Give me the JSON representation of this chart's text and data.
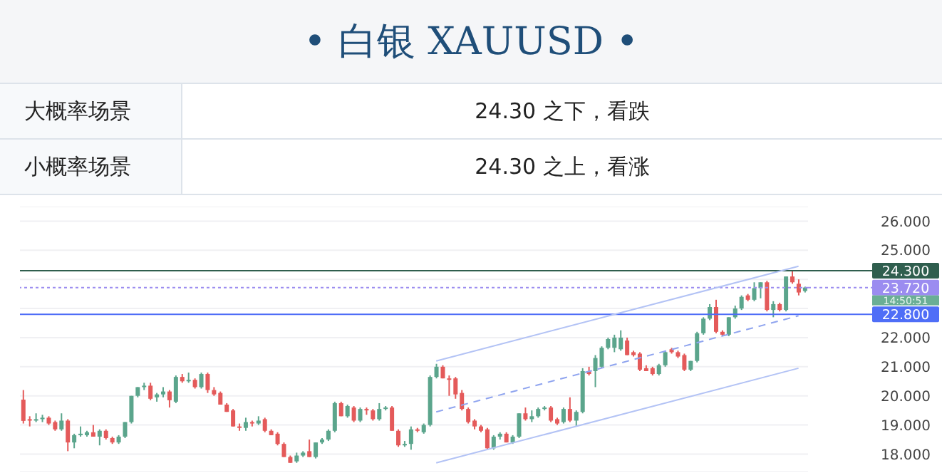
{
  "chart_data": {
    "type": "candlestick",
    "title": "• 白银 XAUUSD •",
    "annotations": [
      "大概率场景",
      "24.30 之下，看跌",
      "小概率场景",
      "24.30 之上，看涨",
      "14:50:51"
    ],
    "categories": [
      null,
      null,
      null,
      null,
      null,
      null,
      null,
      null,
      null,
      null,
      null,
      null,
      null,
      null,
      null,
      null,
      null,
      null,
      null,
      null,
      null,
      null,
      null,
      null,
      null,
      null,
      null,
      null,
      null,
      null,
      null,
      null,
      null,
      null,
      null,
      null,
      null,
      null,
      null,
      null,
      null,
      null,
      null,
      null,
      null,
      null,
      null,
      null,
      null,
      null,
      null,
      null,
      null,
      null,
      null,
      null,
      null,
      null,
      null,
      null,
      null,
      null,
      null,
      null,
      null,
      null,
      null,
      null,
      null,
      null,
      null,
      null,
      null,
      null,
      null,
      null,
      null,
      null,
      null,
      null,
      null,
      null,
      null,
      null,
      null,
      null,
      null,
      null,
      null,
      null,
      null,
      null,
      null,
      null,
      null,
      null,
      null,
      null,
      null,
      null,
      null,
      null,
      null,
      null,
      null,
      null,
      null,
      null,
      null,
      null,
      null,
      null,
      null,
      null,
      null,
      null,
      null,
      null,
      null,
      null,
      null,
      null,
      null,
      null
    ],
    "ohlc": [
      [
        19.87,
        20.2,
        19.05,
        19.14
      ],
      [
        19.2,
        19.3,
        18.95,
        19.15
      ],
      [
        19.15,
        19.4,
        19.1,
        19.2
      ],
      [
        19.2,
        19.35,
        19.1,
        19.25
      ],
      [
        19.25,
        19.3,
        19.0,
        19.05
      ],
      [
        19.1,
        19.15,
        18.8,
        18.85
      ],
      [
        18.85,
        19.4,
        18.8,
        19.15
      ],
      [
        19.15,
        19.2,
        18.1,
        18.4
      ],
      [
        18.4,
        18.7,
        18.2,
        18.65
      ],
      [
        18.65,
        18.95,
        18.6,
        18.7
      ],
      [
        18.65,
        18.8,
        18.6,
        18.75
      ],
      [
        18.75,
        19.0,
        18.6,
        18.6
      ],
      [
        18.6,
        18.85,
        18.3,
        18.8
      ],
      [
        18.8,
        18.85,
        18.5,
        18.55
      ],
      [
        18.55,
        18.6,
        18.35,
        18.4
      ],
      [
        18.4,
        18.65,
        18.35,
        18.6
      ],
      [
        18.6,
        19.1,
        18.55,
        19.1
      ],
      [
        19.1,
        20.0,
        19.05,
        20.0
      ],
      [
        20.0,
        20.3,
        19.95,
        20.3
      ],
      [
        20.3,
        20.45,
        20.2,
        20.35
      ],
      [
        20.35,
        20.45,
        19.85,
        19.9
      ],
      [
        19.95,
        20.1,
        19.8,
        20.05
      ],
      [
        20.05,
        20.3,
        19.95,
        20.15
      ],
      [
        20.15,
        20.2,
        19.6,
        19.85
      ],
      [
        19.8,
        20.7,
        19.75,
        20.65
      ],
      [
        20.65,
        20.75,
        20.45,
        20.5
      ],
      [
        20.5,
        20.8,
        20.45,
        20.55
      ],
      [
        20.55,
        20.6,
        20.25,
        20.3
      ],
      [
        20.3,
        20.8,
        20.25,
        20.75
      ],
      [
        20.75,
        20.8,
        20.1,
        20.2
      ],
      [
        20.2,
        20.3,
        20.0,
        20.05
      ],
      [
        20.1,
        20.15,
        19.7,
        19.7
      ],
      [
        19.7,
        19.75,
        19.45,
        19.45
      ],
      [
        19.5,
        19.55,
        18.95,
        18.95
      ],
      [
        18.95,
        19.05,
        18.8,
        18.9
      ],
      [
        18.9,
        19.25,
        18.8,
        19.1
      ],
      [
        19.1,
        19.15,
        18.95,
        19.05
      ],
      [
        19.05,
        19.3,
        19.0,
        19.15
      ],
      [
        19.2,
        19.25,
        18.75,
        18.8
      ],
      [
        18.8,
        18.85,
        18.65,
        18.65
      ],
      [
        18.7,
        18.75,
        18.3,
        18.35
      ],
      [
        18.35,
        18.4,
        17.9,
        17.9
      ],
      [
        17.9,
        17.95,
        17.7,
        17.7
      ],
      [
        17.75,
        18.05,
        17.7,
        17.95
      ],
      [
        17.95,
        18.1,
        17.9,
        18.05
      ],
      [
        18.1,
        18.5,
        17.9,
        17.9
      ],
      [
        17.9,
        18.4,
        17.85,
        18.4
      ],
      [
        18.4,
        18.55,
        18.35,
        18.5
      ],
      [
        18.5,
        18.85,
        18.45,
        18.8
      ],
      [
        18.8,
        19.8,
        18.75,
        19.75
      ],
      [
        19.75,
        19.8,
        19.3,
        19.3
      ],
      [
        19.3,
        19.7,
        19.25,
        19.65
      ],
      [
        19.6,
        19.65,
        19.1,
        19.15
      ],
      [
        19.15,
        19.6,
        19.1,
        19.55
      ],
      [
        19.55,
        19.6,
        19.35,
        19.5
      ],
      [
        19.5,
        19.55,
        19.15,
        19.2
      ],
      [
        19.2,
        19.75,
        19.15,
        19.55
      ],
      [
        19.55,
        19.65,
        19.5,
        19.6
      ],
      [
        19.6,
        19.65,
        18.8,
        18.8
      ],
      [
        18.8,
        18.85,
        18.25,
        18.3
      ],
      [
        18.3,
        18.45,
        18.25,
        18.35
      ],
      [
        18.35,
        18.95,
        18.15,
        18.85
      ],
      [
        18.85,
        18.9,
        18.75,
        18.8
      ],
      [
        18.75,
        19.05,
        18.7,
        19.0
      ],
      [
        19.0,
        20.7,
        18.95,
        20.65
      ],
      [
        20.65,
        21.1,
        20.6,
        21.0
      ],
      [
        21.0,
        21.05,
        20.6,
        20.6
      ],
      [
        20.6,
        20.7,
        20.0,
        20.55
      ],
      [
        20.6,
        20.65,
        19.9,
        20.05
      ],
      [
        20.1,
        20.2,
        19.5,
        19.55
      ],
      [
        19.55,
        19.6,
        19.05,
        19.1
      ],
      [
        19.15,
        19.2,
        18.85,
        18.95
      ],
      [
        18.95,
        19.0,
        18.75,
        18.8
      ],
      [
        18.85,
        18.9,
        18.15,
        18.2
      ],
      [
        18.2,
        18.65,
        18.15,
        18.6
      ],
      [
        18.6,
        18.75,
        18.5,
        18.7
      ],
      [
        18.7,
        18.75,
        18.4,
        18.4
      ],
      [
        18.4,
        18.65,
        18.35,
        18.6
      ],
      [
        18.6,
        19.4,
        18.55,
        19.4
      ],
      [
        19.4,
        19.6,
        19.15,
        19.2
      ],
      [
        19.2,
        19.5,
        19.1,
        19.3
      ],
      [
        19.3,
        19.6,
        19.25,
        19.55
      ],
      [
        19.55,
        19.65,
        19.5,
        19.6
      ],
      [
        19.6,
        19.65,
        19.1,
        19.15
      ],
      [
        19.2,
        19.25,
        19.0,
        19.05
      ],
      [
        19.1,
        19.6,
        19.05,
        19.55
      ],
      [
        19.55,
        19.95,
        19.1,
        19.15
      ],
      [
        19.15,
        19.5,
        18.95,
        19.45
      ],
      [
        19.45,
        20.95,
        19.4,
        20.85
      ],
      [
        20.85,
        21.0,
        20.7,
        20.75
      ],
      [
        20.85,
        21.4,
        20.3,
        21.3
      ],
      [
        21.0,
        21.7,
        20.95,
        21.65
      ],
      [
        21.65,
        22.0,
        21.6,
        21.95
      ],
      [
        21.65,
        22.1,
        21.5,
        22.0
      ],
      [
        21.6,
        22.25,
        21.55,
        22.0
      ],
      [
        21.9,
        22.0,
        21.4,
        21.4
      ],
      [
        21.5,
        21.55,
        21.35,
        21.4
      ],
      [
        21.45,
        21.5,
        20.85,
        20.9
      ],
      [
        20.95,
        21.05,
        20.85,
        20.85
      ],
      [
        20.95,
        21.0,
        20.7,
        20.75
      ],
      [
        20.75,
        21.1,
        20.7,
        21.05
      ],
      [
        21.05,
        21.55,
        21.0,
        21.5
      ],
      [
        21.6,
        21.65,
        21.45,
        21.5
      ],
      [
        21.5,
        21.55,
        21.3,
        21.35
      ],
      [
        21.4,
        21.45,
        20.85,
        20.9
      ],
      [
        20.9,
        21.2,
        20.85,
        21.2
      ],
      [
        21.2,
        22.2,
        21.15,
        22.15
      ],
      [
        22.15,
        22.7,
        22.1,
        22.65
      ],
      [
        22.65,
        23.15,
        22.6,
        23.05
      ],
      [
        23.05,
        23.3,
        22.15,
        22.2
      ],
      [
        22.2,
        22.25,
        22.05,
        22.1
      ],
      [
        22.1,
        22.7,
        22.05,
        22.7
      ],
      [
        22.7,
        23.1,
        22.65,
        23.0
      ],
      [
        23.0,
        23.45,
        22.95,
        23.4
      ],
      [
        23.45,
        23.5,
        23.25,
        23.3
      ],
      [
        23.3,
        23.9,
        23.25,
        23.7
      ],
      [
        23.7,
        23.9,
        23.35,
        23.9
      ],
      [
        23.9,
        23.95,
        22.9,
        22.95
      ],
      [
        22.95,
        23.25,
        22.7,
        23.15
      ],
      [
        23.15,
        23.2,
        22.9,
        22.95
      ],
      [
        22.95,
        24.1,
        22.9,
        24.1
      ],
      [
        24.1,
        24.3,
        23.85,
        23.9
      ],
      [
        23.85,
        24.0,
        23.45,
        23.55
      ],
      [
        23.6,
        23.75,
        23.55,
        23.72
      ]
    ],
    "colors": [
      "#e45a5a",
      "#e45a5a",
      "#5ba58c",
      "#5ba58c",
      "#e45a5a",
      "#e45a5a",
      "#5ba58c",
      "#e45a5a",
      "#5ba58c",
      "#5ba58c",
      "#5ba58c",
      "#e45a5a",
      "#5ba58c",
      "#e45a5a",
      "#e45a5a",
      "#5ba58c",
      "#5ba58c",
      "#5ba58c",
      "#5ba58c",
      "#5ba58c",
      "#e45a5a",
      "#5ba58c",
      "#5ba58c",
      "#e45a5a",
      "#5ba58c",
      "#e45a5a",
      "#5ba58c",
      "#e45a5a",
      "#5ba58c",
      "#e45a5a",
      "#e45a5a",
      "#e45a5a",
      "#e45a5a",
      "#e45a5a",
      "#e45a5a",
      "#5ba58c",
      "#e45a5a",
      "#5ba58c",
      "#e45a5a",
      "#e45a5a",
      "#e45a5a",
      "#e45a5a",
      "#e45a5a",
      "#5ba58c",
      "#5ba58c",
      "#e45a5a",
      "#5ba58c",
      "#5ba58c",
      "#5ba58c",
      "#5ba58c",
      "#e45a5a",
      "#5ba58c",
      "#e45a5a",
      "#5ba58c",
      "#e45a5a",
      "#e45a5a",
      "#5ba58c",
      "#5ba58c",
      "#e45a5a",
      "#e45a5a",
      "#5ba58c",
      "#5ba58c",
      "#e45a5a",
      "#5ba58c",
      "#5ba58c",
      "#5ba58c",
      "#e45a5a",
      "#e45a5a",
      "#e45a5a",
      "#e45a5a",
      "#e45a5a",
      "#e45a5a",
      "#e45a5a",
      "#e45a5a",
      "#5ba58c",
      "#5ba58c",
      "#e45a5a",
      "#5ba58c",
      "#5ba58c",
      "#e45a5a",
      "#5ba58c",
      "#5ba58c",
      "#5ba58c",
      "#e45a5a",
      "#e45a5a",
      "#5ba58c",
      "#e45a5a",
      "#5ba58c",
      "#5ba58c",
      "#e45a5a",
      "#5ba58c",
      "#5ba58c",
      "#5ba58c",
      "#5ba58c",
      "#5ba58c",
      "#e45a5a",
      "#e45a5a",
      "#e45a5a",
      "#e45a5a",
      "#e45a5a",
      "#5ba58c",
      "#5ba58c",
      "#e45a5a",
      "#e45a5a",
      "#e45a5a",
      "#5ba58c",
      "#5ba58c",
      "#5ba58c",
      "#5ba58c",
      "#e45a5a",
      "#e45a5a",
      "#5ba58c",
      "#5ba58c",
      "#5ba58c",
      "#e45a5a",
      "#5ba58c",
      "#5ba58c",
      "#e45a5a",
      "#5ba58c",
      "#e45a5a",
      "#5ba58c",
      "#e45a5a",
      "#e45a5a",
      "#5ba58c"
    ],
    "series": [
      {
        "type": "line",
        "color": "#b3c3f5",
        "values": [
          null,
          null,
          null,
          null,
          null,
          null,
          null,
          null,
          null,
          null,
          null,
          null,
          null,
          null,
          null,
          null,
          null,
          null,
          null,
          null,
          null,
          null,
          null,
          null,
          null,
          null,
          null,
          null,
          null,
          null,
          null,
          null,
          null,
          null,
          null,
          null,
          null,
          null,
          null,
          null,
          null,
          null,
          null,
          null,
          null,
          null,
          null,
          null,
          null,
          null,
          null,
          null,
          null,
          null,
          null,
          null,
          null,
          null,
          null,
          null,
          null,
          null,
          null,
          null,
          null,
          21.2,
          null,
          null,
          null,
          null,
          null,
          null,
          null,
          null,
          null,
          null,
          null,
          null,
          null,
          null,
          null,
          null,
          null,
          null,
          null,
          null,
          null,
          null,
          null,
          null,
          null,
          null,
          null,
          null,
          null,
          null,
          null,
          null,
          null,
          null,
          null,
          null,
          null,
          null,
          null,
          null,
          null,
          null,
          null,
          null,
          null,
          null,
          null,
          null,
          null,
          null,
          null,
          null,
          null,
          null,
          null,
          null,
          24.45,
          null
        ]
      },
      {
        "type": "line",
        "color": "#8fa4ef",
        "line_style": "dashed",
        "values": [
          null,
          null,
          null,
          null,
          null,
          null,
          null,
          null,
          null,
          null,
          null,
          null,
          null,
          null,
          null,
          null,
          null,
          null,
          null,
          null,
          null,
          null,
          null,
          null,
          null,
          null,
          null,
          null,
          null,
          null,
          null,
          null,
          null,
          null,
          null,
          null,
          null,
          null,
          null,
          null,
          null,
          null,
          null,
          null,
          null,
          null,
          null,
          null,
          null,
          null,
          null,
          null,
          null,
          null,
          null,
          null,
          null,
          null,
          null,
          null,
          null,
          null,
          null,
          null,
          null,
          19.45,
          null,
          null,
          null,
          null,
          null,
          null,
          null,
          null,
          null,
          null,
          null,
          null,
          null,
          null,
          null,
          null,
          null,
          null,
          null,
          null,
          null,
          null,
          null,
          null,
          null,
          null,
          null,
          null,
          null,
          null,
          null,
          null,
          null,
          null,
          null,
          null,
          null,
          null,
          null,
          null,
          null,
          null,
          null,
          null,
          null,
          null,
          null,
          null,
          null,
          null,
          null,
          null,
          null,
          null,
          null,
          null,
          22.75,
          null
        ]
      },
      {
        "type": "line",
        "color": "#b3c3f5",
        "values": [
          null,
          null,
          null,
          null,
          null,
          null,
          null,
          null,
          null,
          null,
          null,
          null,
          null,
          null,
          null,
          null,
          null,
          null,
          null,
          null,
          null,
          null,
          null,
          null,
          null,
          null,
          null,
          null,
          null,
          null,
          null,
          null,
          null,
          null,
          null,
          null,
          null,
          null,
          null,
          null,
          null,
          null,
          null,
          null,
          null,
          null,
          null,
          null,
          null,
          null,
          null,
          null,
          null,
          null,
          null,
          null,
          null,
          null,
          null,
          null,
          null,
          null,
          null,
          null,
          null,
          17.7,
          null,
          null,
          null,
          null,
          null,
          null,
          null,
          null,
          null,
          null,
          null,
          null,
          null,
          null,
          null,
          null,
          null,
          null,
          null,
          null,
          null,
          null,
          null,
          null,
          null,
          null,
          null,
          null,
          null,
          null,
          null,
          null,
          null,
          null,
          null,
          null,
          null,
          null,
          null,
          null,
          null,
          null,
          null,
          null,
          null,
          null,
          null,
          null,
          null,
          null,
          null,
          null,
          null,
          null,
          null,
          null,
          20.95,
          null
        ]
      }
    ],
    "ref_lines": [
      {
        "axis": "y",
        "value": 24.3,
        "label": "24.300",
        "color": "#2f5e4e"
      },
      {
        "axis": "y",
        "value": 22.8,
        "label": "22.800",
        "color": "#4f6ef7"
      },
      {
        "axis": "y",
        "value": 23.72,
        "label": "23.720",
        "color": "#9b8cf0",
        "line_style": "dotted"
      }
    ],
    "ylim": [
      17.4,
      26.5
    ],
    "yticks": [
      {
        "value": 18,
        "label": "18.000"
      },
      {
        "value": 19,
        "label": "19.000"
      },
      {
        "value": 20,
        "label": "20.000"
      },
      {
        "value": 21,
        "label": "21.000"
      },
      {
        "value": 22,
        "label": "22.000"
      },
      {
        "value": 23,
        "label": null
      },
      {
        "value": 24,
        "label": null
      },
      {
        "value": 25,
        "label": "25.000"
      },
      {
        "value": 26,
        "label": "26.000"
      }
    ],
    "grid": "y",
    "tick_labels": "y"
  }
}
